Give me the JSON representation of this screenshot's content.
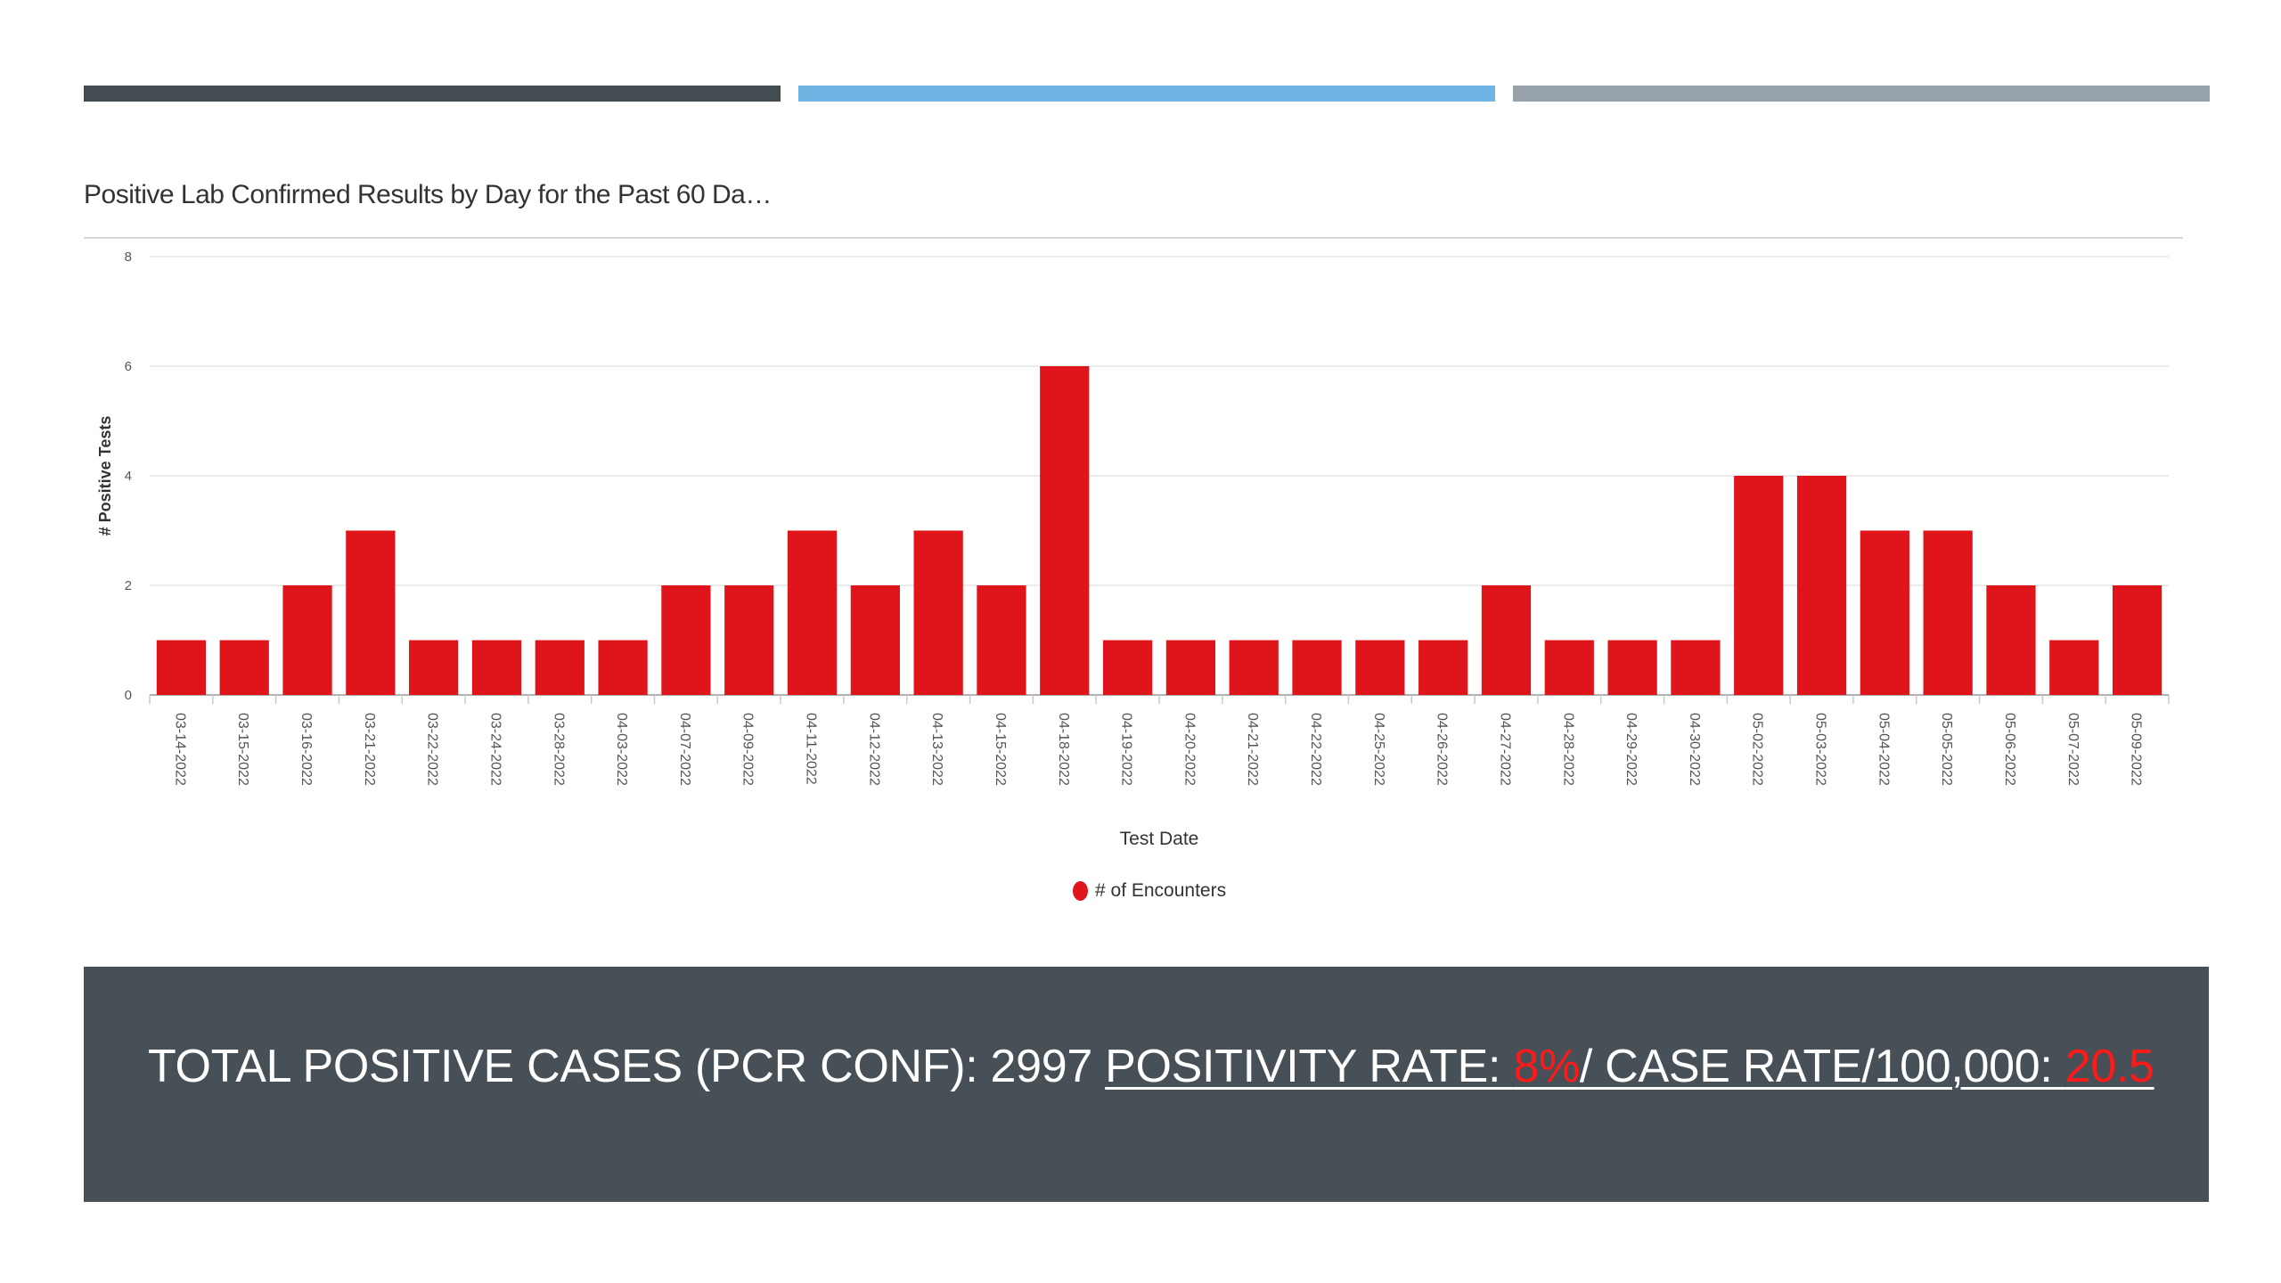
{
  "header_bars": [
    {
      "color": "#434c51"
    },
    {
      "color": "#6fb5e4"
    },
    {
      "color": "#98a2aa"
    }
  ],
  "chart_title": "Positive Lab Confirmed Results by Day for the Past 60 Da…",
  "chart_data": {
    "type": "bar",
    "title": "Positive Lab Confirmed Results by Day for the Past 60 Da…",
    "xlabel": "Test Date",
    "ylabel": "# Positive Tests",
    "ylim": [
      0,
      8
    ],
    "yticks": [
      "0",
      "2",
      "4",
      "6",
      "8"
    ],
    "grid": true,
    "legend_position": "bottom-center",
    "bar_color": "#e0141b",
    "categories": [
      "03-14-2022",
      "03-15-2022",
      "03-16-2022",
      "03-21-2022",
      "03-22-2022",
      "03-24-2022",
      "03-28-2022",
      "04-03-2022",
      "04-07-2022",
      "04-09-2022",
      "04-11-2022",
      "04-12-2022",
      "04-13-2022",
      "04-15-2022",
      "04-18-2022",
      "04-19-2022",
      "04-20-2022",
      "04-21-2022",
      "04-22-2022",
      "04-25-2022",
      "04-26-2022",
      "04-27-2022",
      "04-28-2022",
      "04-29-2022",
      "04-30-2022",
      "05-02-2022",
      "05-03-2022",
      "05-04-2022",
      "05-05-2022",
      "05-06-2022",
      "05-07-2022",
      "05-09-2022"
    ],
    "series": [
      {
        "name": "# of Encounters",
        "values": [
          1,
          1,
          2,
          3,
          1,
          1,
          1,
          1,
          2,
          2,
          3,
          2,
          3,
          2,
          6,
          1,
          1,
          1,
          1,
          1,
          1,
          2,
          1,
          1,
          1,
          4,
          4,
          3,
          3,
          2,
          1,
          2
        ]
      }
    ]
  },
  "stats": {
    "total_label": "TOTAL POSITIVE CASES (PCR CONF): 2997 ",
    "positivity_label": "POSITIVITY RATE: ",
    "positivity_value": "8%",
    "case_rate_label": "/ CASE RATE/100,000: ",
    "case_rate_value": "20.5",
    "value_color": "#ff1a1a",
    "band_color": "#465056"
  }
}
